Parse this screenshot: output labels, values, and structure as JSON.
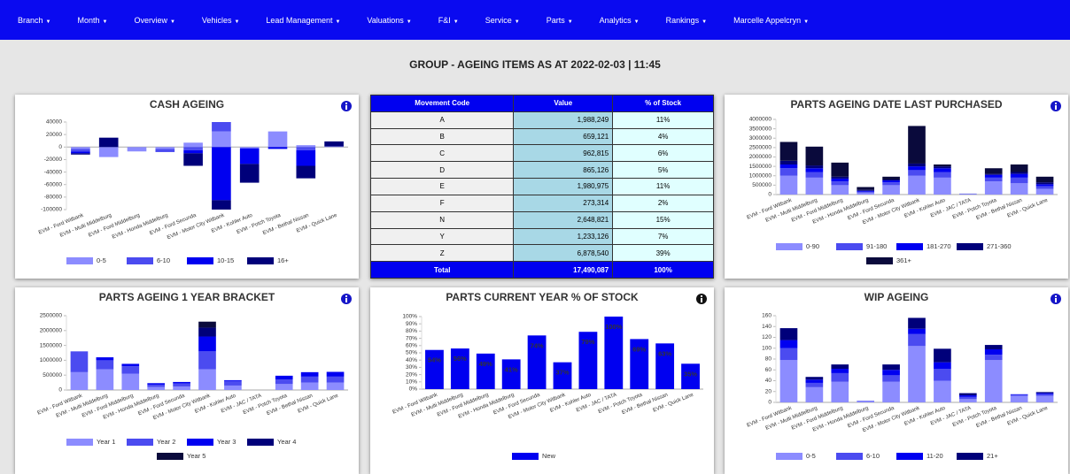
{
  "nav": [
    "Branch",
    "Month",
    "Overview",
    "Vehicles",
    "Lead Management",
    "Valuations",
    "F&I",
    "Service",
    "Parts",
    "Analytics",
    "Rankings",
    "Marcelle Appelcryn"
  ],
  "page_title": "GROUP - AGEING ITEMS AS AT 2022-02-03 | 11:45",
  "table": {
    "columns": [
      "Movement Code",
      "Value",
      "% of Stock"
    ],
    "rows": [
      [
        "A",
        "1,988,249",
        "11%"
      ],
      [
        "B",
        "659,121",
        "4%"
      ],
      [
        "C",
        "962,815",
        "6%"
      ],
      [
        "D",
        "865,126",
        "5%"
      ],
      [
        "E",
        "1,980,975",
        "11%"
      ],
      [
        "F",
        "273,314",
        "2%"
      ],
      [
        "N",
        "2,648,821",
        "15%"
      ],
      [
        "Y",
        "1,233,126",
        "7%"
      ],
      [
        "Z",
        "6,878,540",
        "39%"
      ]
    ],
    "total": [
      "Total",
      "17,490,087",
      "100%"
    ]
  },
  "chart_data": [
    {
      "type": "stacked_bar",
      "title": "CASH AGEING",
      "categories": [
        "EVM - Ford Witbank",
        "EVM - Multi Middelburg",
        "EVM - Ford Middelburg",
        "EVM - Honda Middelburg",
        "EVM - Ford Secunda",
        "EVM - Motor City Witbank",
        "EVM - Kohler Auto",
        "EVM - Potch Toyota",
        "EVM - Bethal Nissan",
        "EVM - Quick Lane"
      ],
      "series": [
        {
          "name": "0-5",
          "color": "#8c8cff",
          "values": [
            -3000,
            -16000,
            -7000,
            -3000,
            7000,
            25000,
            -2000,
            25000,
            3000,
            1000
          ]
        },
        {
          "name": "6-10",
          "color": "#4b4bf0",
          "values": [
            -4000,
            0,
            0,
            -5000,
            -5000,
            15000,
            0,
            0,
            -5000,
            0
          ]
        },
        {
          "name": "10-15",
          "color": "#0000f0",
          "values": [
            -3000,
            0,
            0,
            0,
            -5000,
            -85000,
            -25000,
            -3000,
            -25000,
            0
          ]
        },
        {
          "name": "16+",
          "color": "#00007a",
          "values": [
            -2000,
            15000,
            0,
            0,
            -20000,
            -15000,
            -30000,
            0,
            -20000,
            8000
          ]
        }
      ],
      "ylim": [
        -100000,
        40000
      ],
      "yticks": [
        -100000,
        -80000,
        -60000,
        -40000,
        -20000,
        0,
        20000,
        40000
      ]
    },
    {
      "type": "stacked_bar",
      "title": "PARTS AGEING DATE LAST PURCHASED",
      "categories": [
        "EVM - Ford Witbank",
        "EVM - Multi Middelburg",
        "EVM - Ford Middelburg",
        "EVM - Honda Middelburg",
        "EVM - Ford Secunda",
        "EVM - Motor City Witbank",
        "EVM - Kohler Auto",
        "EVM - JAC / TATA",
        "EVM - Potch Toyota",
        "EVM - Bethal Nissan",
        "EVM - Quick Lane"
      ],
      "series": [
        {
          "name": "0-90",
          "color": "#8c8cff",
          "values": [
            1000000,
            900000,
            500000,
            100000,
            500000,
            1000000,
            900000,
            30000,
            700000,
            600000,
            300000
          ]
        },
        {
          "name": "91-180",
          "color": "#4b4bf0",
          "values": [
            400000,
            300000,
            200000,
            50000,
            150000,
            300000,
            300000,
            10000,
            200000,
            300000,
            150000
          ]
        },
        {
          "name": "181-270",
          "color": "#0000f0",
          "values": [
            200000,
            200000,
            150000,
            50000,
            100000,
            200000,
            200000,
            5000,
            150000,
            200000,
            100000
          ]
        },
        {
          "name": "271-360",
          "color": "#00007a",
          "values": [
            200000,
            150000,
            100000,
            50000,
            50000,
            150000,
            100000,
            5000,
            50000,
            100000,
            100000
          ]
        },
        {
          "name": "361+",
          "color": "#0a0a3c",
          "values": [
            1000000,
            1000000,
            750000,
            150000,
            150000,
            2000000,
            100000,
            0,
            300000,
            400000,
            300000
          ]
        }
      ],
      "ylim": [
        0,
        4000000
      ],
      "yticks": [
        0,
        500000,
        1000000,
        1500000,
        2000000,
        2500000,
        3000000,
        3500000,
        4000000
      ]
    },
    {
      "type": "stacked_bar",
      "title": "PARTS AGEING 1 YEAR BRACKET",
      "categories": [
        "EVM - Ford Witbank",
        "EVM - Multi Middelburg",
        "EVM - Ford Middelburg",
        "EVM - Honda Middelburg",
        "EVM - Ford Secunda",
        "EVM - Motor City Witbank",
        "EVM - Kohler Auto",
        "EVM - JAC / TATA",
        "EVM - Potch Toyota",
        "EVM - Bethal Nissan",
        "EVM - Quick Lane"
      ],
      "series": [
        {
          "name": "Year 1",
          "color": "#8c8cff",
          "values": [
            600000,
            700000,
            550000,
            100000,
            120000,
            700000,
            150000,
            0,
            200000,
            250000,
            250000
          ]
        },
        {
          "name": "Year 2",
          "color": "#4b4bf0",
          "values": [
            700000,
            300000,
            250000,
            80000,
            100000,
            600000,
            150000,
            0,
            150000,
            200000,
            200000
          ]
        },
        {
          "name": "Year 3",
          "color": "#0000f0",
          "values": [
            0,
            100000,
            80000,
            50000,
            50000,
            500000,
            30000,
            0,
            130000,
            150000,
            160000
          ]
        },
        {
          "name": "Year 4",
          "color": "#00007a",
          "values": [
            0,
            0,
            0,
            0,
            0,
            300000,
            0,
            0,
            0,
            0,
            0
          ]
        },
        {
          "name": "Year 5",
          "color": "#0a0a3c",
          "values": [
            0,
            0,
            0,
            0,
            0,
            200000,
            0,
            0,
            0,
            0,
            0
          ]
        }
      ],
      "ylim": [
        0,
        2500000
      ],
      "yticks": [
        0,
        500000,
        1000000,
        1500000,
        2000000,
        2500000
      ]
    },
    {
      "type": "bar",
      "title": "PARTS CURRENT YEAR % OF STOCK",
      "categories": [
        "EVM - Ford Witbank",
        "EVM - Multi Middelburg",
        "EVM - Ford Middelburg",
        "EVM - Honda Middelburg",
        "EVM - Ford Secunda",
        "EVM - Motor City Witbank",
        "EVM - Kohler Auto",
        "EVM - JAC / TATA",
        "EVM - Potch Toyota",
        "EVM - Bethal Nissan",
        "EVM - Quick Lane"
      ],
      "series": [
        {
          "name": "New",
          "color": "#0000f0",
          "values": [
            54,
            56,
            49,
            41,
            74,
            37,
            79,
            100,
            69,
            63,
            35
          ],
          "value_labels": [
            "54%",
            "56%",
            "49%",
            "41%",
            "74%",
            "37%",
            "79%",
            "100%",
            "69%",
            "63%",
            "35%"
          ]
        }
      ],
      "ylim": [
        0,
        100
      ],
      "yticks": [
        {
          "value": 0,
          "label": "0%"
        },
        {
          "value": 10,
          "label": "10%"
        },
        {
          "value": 20,
          "label": "20%"
        },
        {
          "value": 30,
          "label": "30%"
        },
        {
          "value": 40,
          "label": "40%"
        },
        {
          "value": 50,
          "label": "50%"
        },
        {
          "value": 60,
          "label": "60%"
        },
        {
          "value": 70,
          "label": "70%"
        },
        {
          "value": 80,
          "label": "80%"
        },
        {
          "value": 90,
          "label": "90%"
        },
        {
          "value": 100,
          "label": "100%"
        }
      ]
    },
    {
      "type": "stacked_bar",
      "title": "WIP AGEING",
      "categories": [
        "EVM - Ford Witbank",
        "EVM - Multi Middelburg",
        "EVM - Ford Middelburg",
        "EVM - Honda Middelburg",
        "EVM - Ford Secunda",
        "EVM - Motor City Witbank",
        "EVM - Kohler Auto",
        "EVM - JAC / TATA",
        "EVM - Potch Toyota",
        "EVM - Bethal Nissan",
        "EVM - Quick Lane"
      ],
      "series": [
        {
          "name": "0-5",
          "color": "#8c8cff",
          "values": [
            78,
            28,
            38,
            2,
            38,
            104,
            40,
            6,
            78,
            12,
            12
          ]
        },
        {
          "name": "6-10",
          "color": "#4b4bf0",
          "values": [
            22,
            8,
            16,
            1,
            12,
            22,
            22,
            4,
            10,
            2,
            3
          ]
        },
        {
          "name": "11-20",
          "color": "#0000f0",
          "values": [
            15,
            6,
            8,
            0,
            10,
            10,
            12,
            3,
            10,
            1,
            2
          ]
        },
        {
          "name": "21+",
          "color": "#00007a",
          "values": [
            22,
            5,
            8,
            0,
            10,
            20,
            25,
            4,
            8,
            0,
            2
          ]
        }
      ],
      "ylim": [
        0,
        160
      ],
      "yticks": [
        0,
        20,
        40,
        60,
        80,
        100,
        120,
        140,
        160
      ]
    }
  ]
}
